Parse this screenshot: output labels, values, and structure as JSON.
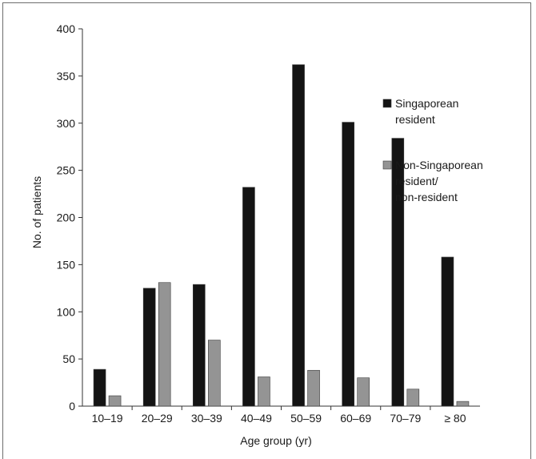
{
  "chart_data": {
    "type": "bar",
    "categories": [
      "10–19",
      "20–29",
      "30–39",
      "40–49",
      "50–59",
      "60–69",
      "70–79",
      "≥ 80"
    ],
    "series": [
      {
        "name": "Singaporean resident",
        "legend_lines": [
          "Singaporean",
          "resident"
        ],
        "color": "#141414",
        "values": [
          39,
          125,
          129,
          232,
          362,
          301,
          284,
          158
        ]
      },
      {
        "name": "Non-Singaporean resident/ non-resident",
        "legend_lines": [
          "Non-Singaporean",
          "resident/",
          "non-resident"
        ],
        "color": "#949494",
        "values": [
          11,
          131,
          70,
          31,
          38,
          30,
          18,
          5
        ]
      }
    ],
    "xlabel": "Age group (yr)",
    "ylabel": "No. of patients",
    "ylim": [
      0,
      400
    ],
    "yticks": [
      0,
      50,
      100,
      150,
      200,
      250,
      300,
      350,
      400
    ],
    "grid": false,
    "legend_position": "right"
  }
}
